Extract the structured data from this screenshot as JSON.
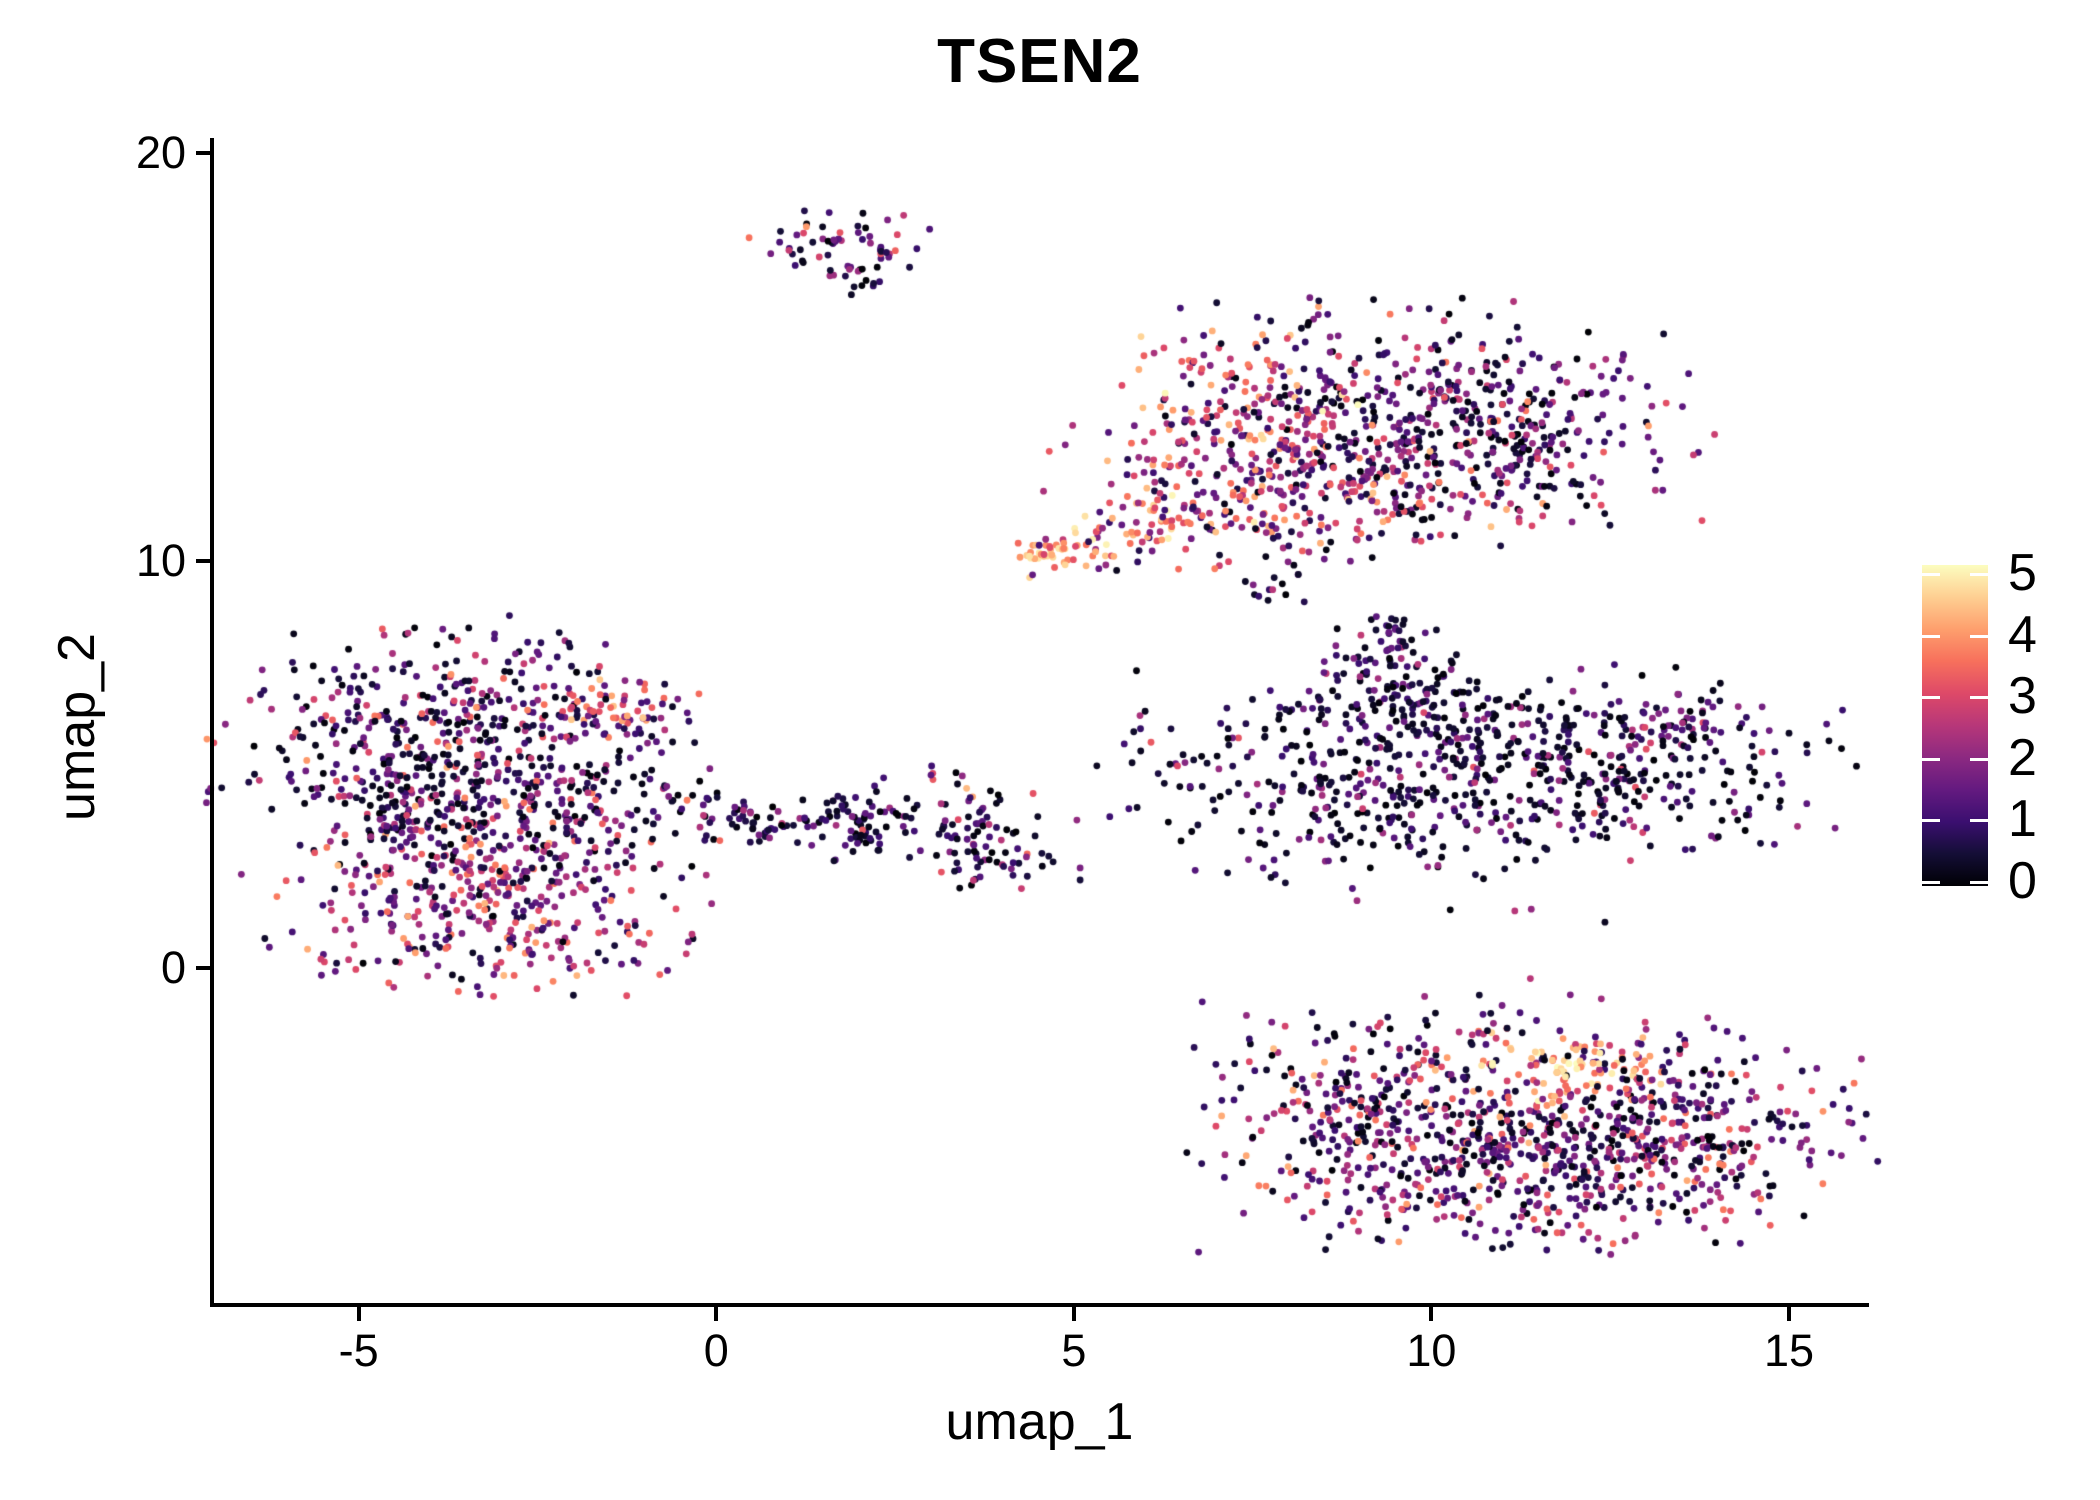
{
  "title": "TSEN2",
  "axes": {
    "xlabel": "umap_1",
    "ylabel": "umap_2"
  },
  "chart_data": {
    "type": "scatter",
    "title": "TSEN2",
    "xlabel": "umap_1",
    "ylabel": "umap_2",
    "xlim": [
      -7.05,
      16.09
    ],
    "ylim": [
      -8.28,
      20.33
    ],
    "grid": false,
    "legend_position": "right",
    "x_ticks": [
      {
        "value": -5,
        "label": "-5"
      },
      {
        "value": 0,
        "label": "0"
      },
      {
        "value": 5,
        "label": "5"
      },
      {
        "value": 10,
        "label": "10"
      },
      {
        "value": 15,
        "label": "15"
      }
    ],
    "y_ticks": [
      {
        "value": 0,
        "label": "0"
      },
      {
        "value": 10,
        "label": "10"
      },
      {
        "value": 20,
        "label": "20"
      }
    ],
    "point_radius_px": 3.4,
    "color_scale": {
      "name": "magma",
      "domain": [
        0,
        5
      ],
      "legend_ticks": [
        {
          "value": 0,
          "label": "0"
        },
        {
          "value": 1,
          "label": "1"
        },
        {
          "value": 2,
          "label": "2"
        },
        {
          "value": 3,
          "label": "3"
        },
        {
          "value": 4,
          "label": "4"
        },
        {
          "value": 5,
          "label": "5"
        }
      ],
      "stops": [
        "#000004",
        "#140e36",
        "#3b0f70",
        "#641a80",
        "#8c2981",
        "#b73779",
        "#de4968",
        "#f7705c",
        "#fe9f6d",
        "#fecf92",
        "#fcfdbf"
      ]
    },
    "clusters": [
      {
        "name": "top-small",
        "blobs": [
          {
            "cx": 1.75,
            "cy": 17.75,
            "rx": 0.6,
            "ry": 0.42,
            "rot": 0,
            "n": 58,
            "expr": [
              [
                0.28,
                0,
                0.7
              ],
              [
                0.26,
                0.7,
                1.6
              ],
              [
                0.24,
                1.6,
                2.6
              ],
              [
                0.16,
                2.6,
                3.4
              ],
              [
                0.06,
                3.4,
                4.1
              ]
            ]
          },
          {
            "cx": 1.95,
            "cy": 16.95,
            "rx": 0.22,
            "ry": 0.28,
            "rot": 0,
            "n": 13,
            "expr": [
              [
                0.5,
                0,
                0.7
              ],
              [
                0.3,
                0.7,
                1.6
              ],
              [
                0.2,
                1.6,
                2.6
              ]
            ]
          }
        ]
      },
      {
        "name": "top-right",
        "blobs": [
          {
            "cx": 7.45,
            "cy": 13.0,
            "rx": 1.15,
            "ry": 1.6,
            "rot": -10,
            "n": 330,
            "expr": [
              [
                0.08,
                0,
                0.7
              ],
              [
                0.17,
                0.7,
                1.6
              ],
              [
                0.3,
                1.6,
                2.6
              ],
              [
                0.3,
                2.6,
                3.6
              ],
              [
                0.12,
                3.6,
                4.4
              ],
              [
                0.03,
                4.4,
                5.0
              ]
            ]
          },
          {
            "cx": 10.05,
            "cy": 13.3,
            "rx": 1.7,
            "ry": 1.4,
            "rot": 0,
            "n": 430,
            "expr": [
              [
                0.38,
                0,
                0.6
              ],
              [
                0.27,
                0.6,
                1.5
              ],
              [
                0.22,
                1.5,
                2.5
              ],
              [
                0.1,
                2.5,
                3.3
              ],
              [
                0.03,
                3.3,
                4.2
              ]
            ]
          },
          {
            "cx": 8.7,
            "cy": 11.55,
            "rx": 1.25,
            "ry": 0.65,
            "rot": 8,
            "n": 140,
            "expr": [
              [
                0.15,
                0,
                0.7
              ],
              [
                0.2,
                0.7,
                1.6
              ],
              [
                0.3,
                1.6,
                2.8
              ],
              [
                0.25,
                2.8,
                3.8
              ],
              [
                0.1,
                3.8,
                4.6
              ]
            ]
          },
          {
            "cx": 11.35,
            "cy": 13.4,
            "rx": 0.6,
            "ry": 1.05,
            "rot": 0,
            "n": 80,
            "expr": [
              [
                0.45,
                0,
                0.6
              ],
              [
                0.3,
                0.6,
                1.5
              ],
              [
                0.18,
                1.5,
                2.5
              ],
              [
                0.07,
                2.5,
                3.4
              ]
            ]
          },
          {
            "cx": 5.45,
            "cy": 10.55,
            "rx": 0.9,
            "ry": 0.28,
            "rot": 25,
            "n": 78,
            "expr": [
              [
                0.05,
                0.5,
                1.5
              ],
              [
                0.15,
                1.5,
                2.8
              ],
              [
                0.25,
                2.8,
                3.8
              ],
              [
                0.35,
                3.8,
                4.6
              ],
              [
                0.2,
                4.6,
                5.0
              ]
            ]
          },
          {
            "cx": 4.72,
            "cy": 10.18,
            "rx": 0.22,
            "ry": 0.13,
            "rot": 15,
            "n": 12,
            "expr": [
              [
                0.3,
                2.5,
                3.5
              ],
              [
                0.4,
                3.5,
                4.6
              ],
              [
                0.3,
                4.6,
                5.0
              ]
            ]
          }
        ]
      },
      {
        "name": "mini-clump",
        "blobs": [
          {
            "cx": 7.85,
            "cy": 9.35,
            "rx": 0.2,
            "ry": 0.26,
            "rot": 0,
            "n": 14,
            "expr": [
              [
                0.45,
                0,
                0.7
              ],
              [
                0.35,
                0.7,
                1.8
              ],
              [
                0.12,
                1.8,
                2.6
              ],
              [
                0.08,
                3.0,
                3.8
              ]
            ]
          }
        ]
      },
      {
        "name": "mid-right",
        "blobs": [
          {
            "cx": 9.55,
            "cy": 7.05,
            "rx": 0.55,
            "ry": 0.72,
            "rot": 15,
            "n": 100,
            "expr": [
              [
                0.52,
                0,
                0.6
              ],
              [
                0.3,
                0.6,
                1.5
              ],
              [
                0.14,
                1.5,
                2.5
              ],
              [
                0.04,
                2.5,
                3.4
              ]
            ]
          },
          {
            "cx": 9.58,
            "cy": 8.2,
            "rx": 0.18,
            "ry": 0.32,
            "rot": 0,
            "n": 12,
            "expr": [
              [
                0.45,
                0,
                0.6
              ],
              [
                0.3,
                0.6,
                1.5
              ],
              [
                0.15,
                1.5,
                2.6
              ],
              [
                0.1,
                2.8,
                3.6
              ]
            ]
          },
          {
            "cx": 9.2,
            "cy": 4.6,
            "rx": 1.7,
            "ry": 1.3,
            "rot": -8,
            "n": 380,
            "expr": [
              [
                0.57,
                0,
                0.55
              ],
              [
                0.27,
                0.55,
                1.4
              ],
              [
                0.13,
                1.4,
                2.3
              ],
              [
                0.03,
                2.3,
                3.3
              ]
            ]
          },
          {
            "cx": 12.1,
            "cy": 5.0,
            "rx": 1.65,
            "ry": 1.1,
            "rot": -5,
            "n": 330,
            "expr": [
              [
                0.55,
                0,
                0.55
              ],
              [
                0.28,
                0.55,
                1.4
              ],
              [
                0.14,
                1.4,
                2.4
              ],
              [
                0.03,
                2.4,
                3.3
              ]
            ]
          },
          {
            "cx": 13.3,
            "cy": 5.9,
            "rx": 0.45,
            "ry": 0.32,
            "rot": 30,
            "n": 45,
            "expr": [
              [
                0.28,
                0,
                0.6
              ],
              [
                0.3,
                0.6,
                1.5
              ],
              [
                0.32,
                1.5,
                2.6
              ],
              [
                0.1,
                2.6,
                3.4
              ]
            ]
          }
        ]
      },
      {
        "name": "left-large",
        "blobs": [
          {
            "cx": -3.65,
            "cy": 5.9,
            "rx": 1.5,
            "ry": 1.2,
            "rot": 0,
            "n": 430,
            "expr": [
              [
                0.42,
                0,
                0.6
              ],
              [
                0.28,
                0.6,
                1.5
              ],
              [
                0.18,
                1.5,
                2.5
              ],
              [
                0.09,
                2.5,
                3.4
              ],
              [
                0.03,
                3.4,
                4.2
              ]
            ]
          },
          {
            "cx": -3.3,
            "cy": 3.9,
            "rx": 1.45,
            "ry": 0.85,
            "rot": 0,
            "n": 230,
            "expr": [
              [
                0.45,
                0,
                0.6
              ],
              [
                0.3,
                0.6,
                1.5
              ],
              [
                0.15,
                1.5,
                2.5
              ],
              [
                0.08,
                2.5,
                3.3
              ],
              [
                0.02,
                3.3,
                4.0
              ]
            ]
          },
          {
            "cx": -3.1,
            "cy": 1.8,
            "rx": 1.4,
            "ry": 1.2,
            "rot": 0,
            "n": 430,
            "expr": [
              [
                0.18,
                0,
                0.6
              ],
              [
                0.25,
                0.6,
                1.5
              ],
              [
                0.3,
                1.5,
                2.6
              ],
              [
                0.2,
                2.6,
                3.5
              ],
              [
                0.07,
                3.5,
                4.3
              ]
            ]
          },
          {
            "cx": -1.35,
            "cy": 6.3,
            "rx": 0.52,
            "ry": 0.42,
            "rot": -20,
            "n": 55,
            "expr": [
              [
                0.2,
                0.5,
                1.5
              ],
              [
                0.25,
                1.5,
                2.5
              ],
              [
                0.3,
                2.5,
                3.5
              ],
              [
                0.25,
                3.5,
                4.5
              ]
            ]
          },
          {
            "cx": 0.0,
            "cy": 4.0,
            "rx": 0.8,
            "ry": 0.28,
            "rot": -30,
            "n": 26,
            "expr": [
              [
                0.45,
                0,
                0.7
              ],
              [
                0.3,
                0.7,
                1.6
              ],
              [
                0.25,
                1.6,
                2.8
              ]
            ]
          }
        ]
      },
      {
        "name": "mid-band-left",
        "blobs": [
          {
            "cx": 1.3,
            "cy": 3.55,
            "rx": 1.05,
            "ry": 0.32,
            "rot": -5,
            "n": 60,
            "expr": [
              [
                0.5,
                0,
                0.6
              ],
              [
                0.3,
                0.6,
                1.5
              ],
              [
                0.15,
                1.5,
                2.5
              ],
              [
                0.05,
                2.5,
                3.3
              ]
            ]
          },
          {
            "cx": 2.0,
            "cy": 3.6,
            "rx": 0.42,
            "ry": 0.48,
            "rot": 0,
            "n": 55,
            "expr": [
              [
                0.55,
                0,
                0.6
              ],
              [
                0.3,
                0.6,
                1.5
              ],
              [
                0.15,
                1.5,
                2.5
              ]
            ]
          }
        ]
      },
      {
        "name": "mid-band-right",
        "blobs": [
          {
            "cx": 3.75,
            "cy": 3.3,
            "rx": 0.55,
            "ry": 0.8,
            "rot": 20,
            "n": 95,
            "expr": [
              [
                0.5,
                0,
                0.6
              ],
              [
                0.3,
                0.6,
                1.5
              ],
              [
                0.15,
                1.5,
                2.6
              ],
              [
                0.05,
                2.6,
                3.5
              ]
            ]
          },
          {
            "cx": 3.5,
            "cy": 4.35,
            "rx": 0.08,
            "ry": 0.08,
            "rot": 0,
            "n": 2,
            "expr": [
              [
                1,
                3.8,
                4.3
              ]
            ]
          }
        ]
      },
      {
        "name": "bottom-right",
        "blobs": [
          {
            "cx": 9.6,
            "cy": -3.6,
            "rx": 1.3,
            "ry": 1.45,
            "rot": 0,
            "n": 400,
            "expr": [
              [
                0.3,
                0,
                0.6
              ],
              [
                0.28,
                0.6,
                1.5
              ],
              [
                0.24,
                1.5,
                2.6
              ],
              [
                0.13,
                2.6,
                3.5
              ],
              [
                0.05,
                3.5,
                4.3
              ]
            ]
          },
          {
            "cx": 11.4,
            "cy": -4.9,
            "rx": 1.45,
            "ry": 0.9,
            "rot": -5,
            "n": 300,
            "expr": [
              [
                0.32,
                0,
                0.6
              ],
              [
                0.3,
                0.6,
                1.5
              ],
              [
                0.24,
                1.5,
                2.6
              ],
              [
                0.11,
                2.6,
                3.4
              ],
              [
                0.03,
                3.4,
                4.2
              ]
            ]
          },
          {
            "cx": 13.3,
            "cy": -4.1,
            "rx": 1.35,
            "ry": 1.2,
            "rot": 10,
            "n": 360,
            "expr": [
              [
                0.22,
                0,
                0.6
              ],
              [
                0.28,
                0.6,
                1.5
              ],
              [
                0.28,
                1.5,
                2.7
              ],
              [
                0.16,
                2.7,
                3.6
              ],
              [
                0.06,
                3.6,
                4.4
              ]
            ]
          },
          {
            "cx": 11.9,
            "cy": -2.45,
            "rx": 0.75,
            "ry": 0.38,
            "rot": -8,
            "n": 80,
            "expr": [
              [
                0.1,
                2.5,
                3.3
              ],
              [
                0.3,
                3.3,
                4.0
              ],
              [
                0.4,
                4.0,
                4.8
              ],
              [
                0.2,
                4.8,
                5.0
              ]
            ]
          }
        ]
      }
    ]
  }
}
